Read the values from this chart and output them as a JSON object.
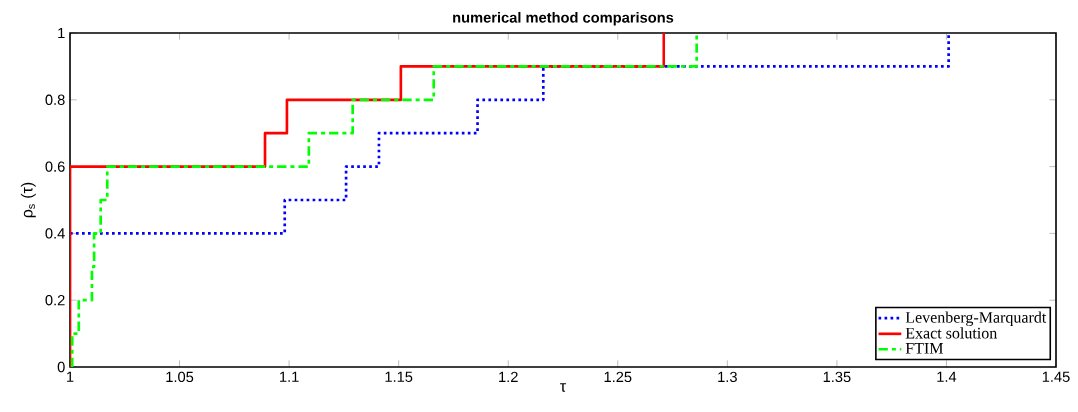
{
  "chart_data": {
    "type": "step",
    "title": "numerical method comparisons",
    "xlabel": "τ",
    "ylabel": "ρ$_{s}$ (τ)",
    "xlim": [
      1,
      1.45
    ],
    "ylim": [
      0,
      1
    ],
    "xticks": [
      1,
      1.05,
      1.1,
      1.15,
      1.2,
      1.25,
      1.3,
      1.35,
      1.4,
      1.45
    ],
    "yticks": [
      0,
      0.2,
      0.4,
      0.6,
      0.8,
      1
    ],
    "legend": "bottom right",
    "grid": false,
    "series": [
      {
        "name": "Levenberg-Marquardt",
        "color": "#0000ff",
        "line_style": "dotted",
        "x": [
          1,
          1.098,
          1.126,
          1.141,
          1.186,
          1.216,
          1.401
        ],
        "values": [
          0.4,
          0.5,
          0.6,
          0.7,
          0.8,
          0.9,
          1.0
        ]
      },
      {
        "name": "Exact solution",
        "color": "#ff0000",
        "line_style": "solid",
        "x": [
          1,
          1,
          1.089,
          1.099,
          1.151,
          1.271
        ],
        "values": [
          0,
          0.6,
          0.7,
          0.8,
          0.9,
          1.0
        ]
      },
      {
        "name": "FTIM",
        "color": "#00ff00",
        "line_style": "dashed",
        "x": [
          1.001,
          1.001,
          1.004,
          1.01,
          1.011,
          1.014,
          1.017,
          1.109,
          1.129,
          1.166,
          1.286
        ],
        "values": [
          0,
          0.1,
          0.2,
          0.3,
          0.4,
          0.5,
          0.6,
          0.7,
          0.8,
          0.9,
          1.0
        ]
      }
    ]
  }
}
